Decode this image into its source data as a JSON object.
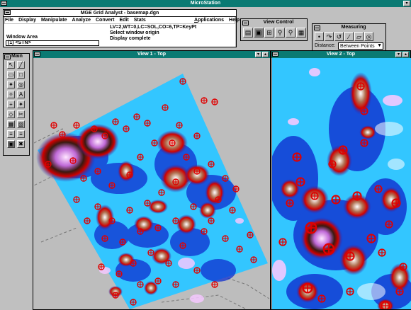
{
  "app": {
    "title": "MicroStation"
  },
  "analyst": {
    "title": "MGE Grid Analyst - basemap.dgn",
    "menu_left": [
      "File",
      "Display",
      "Manipulate",
      "Analyze",
      "Convert",
      "Edit",
      "Stats"
    ],
    "menu_right": [
      "Applications",
      "Help"
    ],
    "status_line1": "LV=2,WT=0,LC=SOL,CO=6,TP=KeyPt",
    "status_line2": "Select window origin",
    "status_line3": "Display complete",
    "command": "Window Area",
    "prompt": "(1) <STN>"
  },
  "view_control": {
    "title": "View Control",
    "icons": [
      "update-view-icon",
      "window-area-icon",
      "fit-view-icon",
      "zoom-in-icon",
      "zoom-out-icon",
      "view-previous-icon"
    ]
  },
  "measuring": {
    "title": "Measuring",
    "distance_label": "Distance:",
    "distance_value": "Between Points"
  },
  "main_palette": {
    "title": "Main",
    "tools": [
      "↖",
      "╱",
      "▭",
      "□",
      "✦",
      "◎",
      "✧",
      "A",
      "+",
      "✦",
      "◇",
      "✂",
      "▦",
      "▧",
      "≡",
      "≡",
      "▣",
      "✖"
    ]
  },
  "view1": {
    "title": "View 1 - Top"
  },
  "view2": {
    "title": "View 2 - Top"
  },
  "colors": {
    "titlebar": "#0a7a73",
    "map_cyan": "#33c6ff",
    "map_blue": "#0f2fd0",
    "map_red": "#d00000",
    "view_bg": "#bdbdbd"
  }
}
